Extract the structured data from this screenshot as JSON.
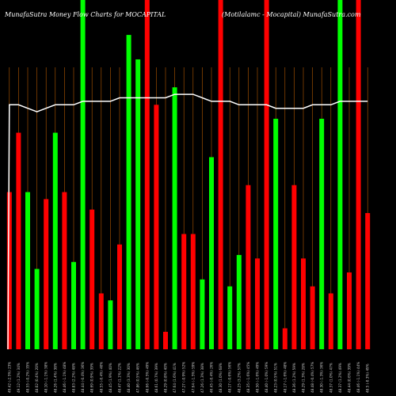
{
  "chart_data": {
    "type": "bar",
    "title": "MunafaSutra  Money Flow  Charts for MOCAPITAL",
    "subtitle": "(Motilalamc -  Mocapital) MunafaSutra.com",
    "ylim": [
      0,
      100
    ],
    "series": [
      {
        "name": "flow",
        "values": [
          45,
          62,
          45,
          23,
          43,
          62,
          45,
          25,
          100,
          40,
          16,
          14,
          30,
          90,
          83,
          100,
          70,
          5,
          75,
          33,
          33,
          20,
          55,
          100,
          18,
          27,
          47,
          26,
          100,
          66,
          6,
          47,
          26,
          18,
          66,
          16,
          100,
          22,
          100,
          39
        ]
      },
      {
        "name": "price",
        "values": [
          70,
          70,
          69,
          68,
          69,
          70,
          70,
          70,
          71,
          71,
          71,
          71,
          72,
          72,
          72,
          72,
          72,
          72,
          73,
          73,
          73,
          72,
          71,
          71,
          71,
          70,
          70,
          70,
          70,
          69,
          69,
          69,
          69,
          70,
          70,
          70,
          71,
          71,
          71,
          71
        ]
      }
    ],
    "bar_colors": [
      "red",
      "red",
      "green",
      "green",
      "red",
      "green",
      "red",
      "green",
      "green",
      "red",
      "red",
      "green",
      "red",
      "green",
      "green",
      "red",
      "red",
      "red",
      "green",
      "red",
      "red",
      "green",
      "green",
      "red",
      "green",
      "green",
      "red",
      "red",
      "red",
      "green",
      "red",
      "red",
      "red",
      "red",
      "green",
      "red",
      "green",
      "red",
      "red",
      "red"
    ],
    "categories": [
      "49.42 (-2.5%) 23%",
      "49.12 (1.2%) 34%",
      "48.55 (-0.2%) 35%",
      "48.02 (0.4%) 20%",
      "48.10 (-1.1%) 38%",
      "48.26 (1.4%) 38%",
      "48.46 (-1.1%) 48%",
      "48.83 (2.2%) 48%",
      "48.44 (-0.4%) 36%",
      "48.69 (0.9%) 39%",
      "48.55 (-0.4%) 40%",
      "48.45 (1.9%) 40%",
      "48.47 (1.1%) 22%",
      "48.40 (3.3%) 30%",
      "47.86 (0.5%) 46%",
      "48.66 (-0.5%) 49%",
      "48.61 (0.7%) 39%",
      "48.29 (0.8%) 40%",
      "47.64 (1.6%) 41%",
      "47.27 (-0.9%) 52%",
      "47.64 (-1.5%) 59%",
      "47.26 (1.3%) 38%",
      "46.45 (-0.4%) 26%",
      "48.30 (1.0%) 68%",
      "48.17 (-0.6%) 56%",
      "48.25 (3.2%) 57%",
      "48.35 (-1.6%) 45%",
      "48.50 (-1.6%) 49%",
      "48.40 (-1.0%) 59%",
      "48.23 (0.5%) 51%",
      "48.17 (-1.6%) 48%",
      "48.36 (1.2%) 59%",
      "48.29 (1.3%) 28%",
      "48.48 (-0.4%) 57%",
      "48.30 (-1.3%) 36%",
      "48.37 (1.0%) 47%",
      "48.37 (1.2%) 49%",
      "48.44 (0.6%) 39%",
      "48.46 (-1.1%) 44%",
      "48.5 (-0.3%) 49%"
    ]
  },
  "colors": {
    "background": "#000000",
    "up": "#00ff00",
    "down": "#ff0000",
    "grid": "#b35900",
    "line": "#ffffff",
    "text": "#ffffff"
  }
}
